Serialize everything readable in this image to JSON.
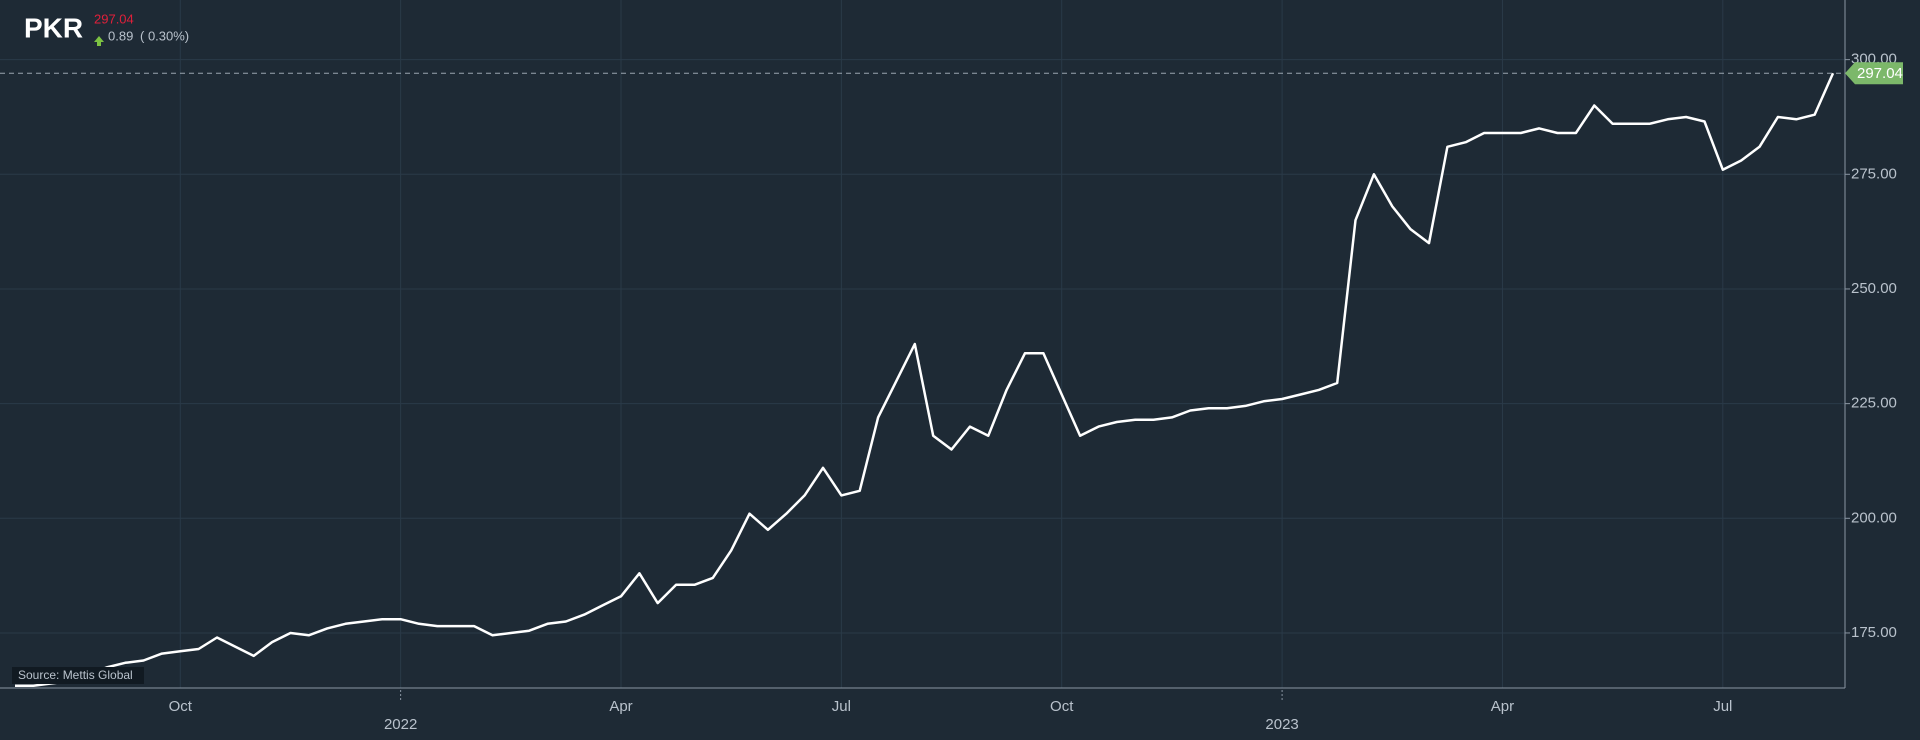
{
  "header": {
    "symbol": "PKR",
    "price": 297.04,
    "change": 0.89,
    "change_percent": "( 0.30%)",
    "source": "Source: Mettis Global"
  },
  "chart_data": {
    "type": "line",
    "categories": [
      null,
      null,
      null,
      null,
      null,
      null,
      null,
      null,
      null,
      "Oct",
      null,
      null,
      null,
      null,
      null,
      null,
      null,
      null,
      null,
      null,
      null,
      "2022",
      null,
      null,
      null,
      null,
      null,
      null,
      null,
      null,
      null,
      null,
      null,
      "Apr",
      null,
      null,
      null,
      null,
      null,
      null,
      null,
      null,
      null,
      null,
      null,
      "Jul",
      null,
      null,
      null,
      null,
      null,
      null,
      null,
      null,
      null,
      null,
      null,
      "Oct",
      null,
      null,
      null,
      null,
      null,
      null,
      null,
      null,
      null,
      null,
      null,
      "2023",
      null,
      null,
      null,
      null,
      null,
      null,
      null,
      null,
      null,
      null,
      null,
      "Apr",
      null,
      null,
      null,
      null,
      null,
      null,
      null,
      null,
      null,
      null,
      null,
      "Jul",
      null,
      null,
      null,
      null,
      null,
      null
    ],
    "series": [
      {
        "name": "PKR",
        "color": "#ffffff",
        "values": [
          163.5,
          163.5,
          164,
          164.5,
          166,
          167.5,
          168.5,
          169,
          170.5,
          171,
          171.5,
          174,
          172,
          170,
          173,
          175,
          174.5,
          176,
          177,
          177.5,
          178,
          178,
          177,
          176.5,
          176.5,
          176.5,
          174.5,
          175,
          175.5,
          177,
          177.5,
          179,
          181,
          183,
          188,
          181.5,
          185.5,
          185.5,
          187,
          193,
          201,
          197.5,
          201,
          205,
          211,
          205,
          206,
          222,
          230,
          238,
          218,
          215,
          220,
          218,
          228,
          236,
          236,
          227,
          218,
          220,
          221,
          221.5,
          221.5,
          222,
          223.5,
          224,
          224,
          224.5,
          225.5,
          226,
          227,
          228,
          229.5,
          265,
          275,
          268,
          263,
          260,
          281,
          282,
          284,
          284,
          284,
          285,
          284,
          284,
          290,
          286,
          286,
          286,
          287,
          287.5,
          286.5,
          276,
          278,
          281,
          287.5,
          287,
          288,
          297.04
        ]
      }
    ],
    "ylim": [
      163,
      313
    ],
    "yticks": [
      {
        "value": 175,
        "label": "175.00"
      },
      {
        "value": 200,
        "label": "200.00"
      },
      {
        "value": 225,
        "label": "225.00"
      },
      {
        "value": 250,
        "label": "250.00"
      },
      {
        "value": 275,
        "label": "275.00"
      },
      {
        "value": 300,
        "label": "300.00"
      }
    ],
    "grid": true
  }
}
